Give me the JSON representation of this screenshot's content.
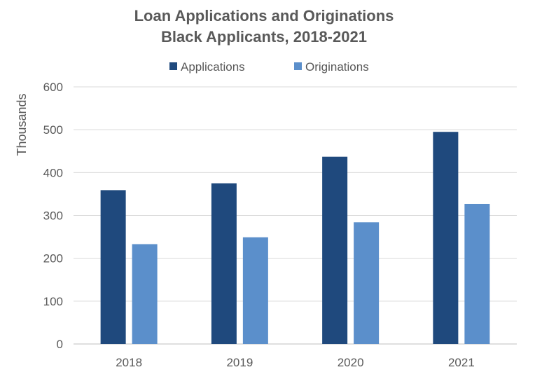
{
  "chart_data": {
    "type": "bar",
    "title": [
      "Loan Applications and Originations",
      "Black Applicants, 2018-2021"
    ],
    "ylabel": "Thousands",
    "xlabel": "",
    "categories": [
      "2018",
      "2019",
      "2020",
      "2021"
    ],
    "series": [
      {
        "name": "Applications",
        "color": "#1f497d",
        "values": [
          359,
          375,
          437,
          495
        ]
      },
      {
        "name": "Originations",
        "color": "#5b8fcb",
        "values": [
          233,
          249,
          284,
          327
        ]
      }
    ],
    "ylim": [
      0,
      600
    ],
    "yticks": [
      "0",
      "100",
      "200",
      "300",
      "400",
      "500",
      "600"
    ],
    "grid": true,
    "legend_position": "top-center"
  }
}
